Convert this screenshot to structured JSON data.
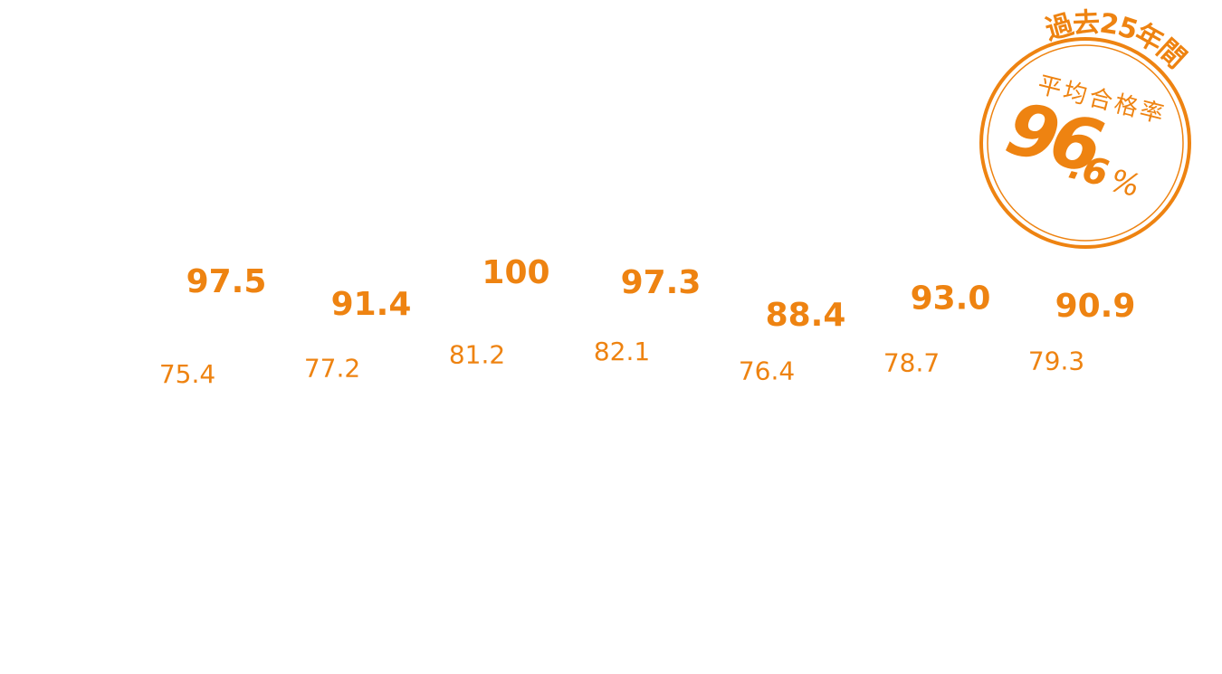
{
  "chart_data": {
    "type": "bar",
    "series": [
      {
        "color": "#ee8311",
        "values": [
          97.5,
          91.4,
          100,
          97.3,
          88.4,
          93.0,
          90.9
        ],
        "value_labels": [
          "97.5",
          "91.4",
          "100",
          "97.3",
          "88.4",
          "93.0",
          "90.9"
        ]
      },
      {
        "color": "#ee8311",
        "values": [
          75.4,
          77.2,
          81.2,
          82.1,
          76.4,
          78.7,
          79.3
        ],
        "value_labels": [
          "75.4",
          "77.2",
          "81.2",
          "82.1",
          "76.4",
          "78.7",
          "79.3"
        ]
      }
    ]
  },
  "badge": {
    "arc_text": "過去25年間",
    "label": "平均合格率",
    "value": "96",
    "decimal": ".6",
    "unit": "%",
    "color": "#ee8311"
  }
}
